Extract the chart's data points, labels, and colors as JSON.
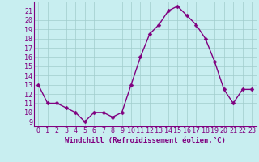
{
  "x": [
    0,
    1,
    2,
    3,
    4,
    5,
    6,
    7,
    8,
    9,
    10,
    11,
    12,
    13,
    14,
    15,
    16,
    17,
    18,
    19,
    20,
    21,
    22,
    23
  ],
  "y": [
    13,
    11,
    11,
    10.5,
    10,
    9,
    10,
    10,
    9.5,
    10,
    13,
    16,
    18.5,
    19.5,
    21,
    21.5,
    20.5,
    19.5,
    18,
    15.5,
    12.5,
    11,
    12.5,
    12.5
  ],
  "line_color": "#800080",
  "marker": "D",
  "markersize": 2.5,
  "linewidth": 1.0,
  "bg_color": "#c8eef0",
  "grid_color": "#a0cccc",
  "ylabel_ticks": [
    9,
    10,
    11,
    12,
    13,
    14,
    15,
    16,
    17,
    18,
    19,
    20,
    21
  ],
  "xlim": [
    -0.5,
    23.5
  ],
  "ylim": [
    8.5,
    22
  ],
  "xlabel": "Windchill (Refroidissement éolien,°C)",
  "xlabel_fontsize": 6.5,
  "tick_fontsize": 6.0,
  "line_purple": "#800080",
  "spine_color": "#800080"
}
